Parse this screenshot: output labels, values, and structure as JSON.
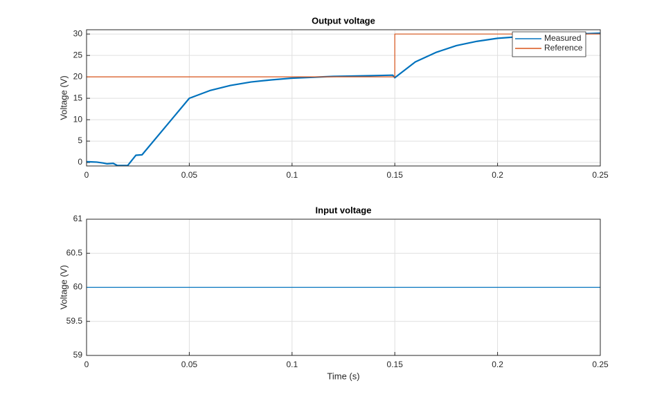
{
  "chart_data": [
    {
      "type": "line",
      "title": "Output voltage",
      "ylabel": "Voltage (V)",
      "xlim": [
        0,
        0.25
      ],
      "xticks": [
        0,
        0.05,
        0.1,
        0.15,
        0.2,
        0.25
      ],
      "ylim": [
        -0.8,
        31
      ],
      "yticks": [
        0,
        5,
        10,
        15,
        20,
        25,
        30
      ],
      "grid": true,
      "legend": "top-right",
      "series": [
        {
          "name": "Measured",
          "color": "#0072BD",
          "x": [
            0,
            0.005,
            0.008,
            0.01,
            0.013,
            0.015,
            0.02,
            0.024,
            0.027,
            0.05,
            0.06,
            0.07,
            0.08,
            0.09,
            0.1,
            0.12,
            0.14,
            0.149,
            0.15,
            0.16,
            0.17,
            0.18,
            0.19,
            0.2,
            0.22,
            0.25
          ],
          "values": [
            0.2,
            0.1,
            -0.1,
            -0.3,
            -0.2,
            -0.7,
            -0.7,
            1.7,
            1.8,
            15,
            16.8,
            18,
            18.8,
            19.3,
            19.7,
            20.1,
            20.3,
            20.4,
            19.8,
            23.5,
            25.7,
            27.3,
            28.3,
            29,
            29.7,
            30.2
          ]
        },
        {
          "name": "Reference",
          "color": "#D95319",
          "x": [
            0,
            0.15,
            0.15,
            0.25
          ],
          "values": [
            20,
            20,
            30,
            30
          ]
        }
      ]
    },
    {
      "type": "line",
      "title": "Input voltage",
      "ylabel": "Voltage (V)",
      "xlabel": "Time (s)",
      "xlim": [
        0,
        0.25
      ],
      "xticks": [
        0,
        0.05,
        0.1,
        0.15,
        0.2,
        0.25
      ],
      "ylim": [
        59,
        61
      ],
      "yticks": [
        59,
        59.5,
        60,
        60.5,
        61
      ],
      "grid": true,
      "series": [
        {
          "color": "#0072BD",
          "x": [
            0,
            0.25
          ],
          "values": [
            60,
            60
          ]
        }
      ]
    }
  ]
}
